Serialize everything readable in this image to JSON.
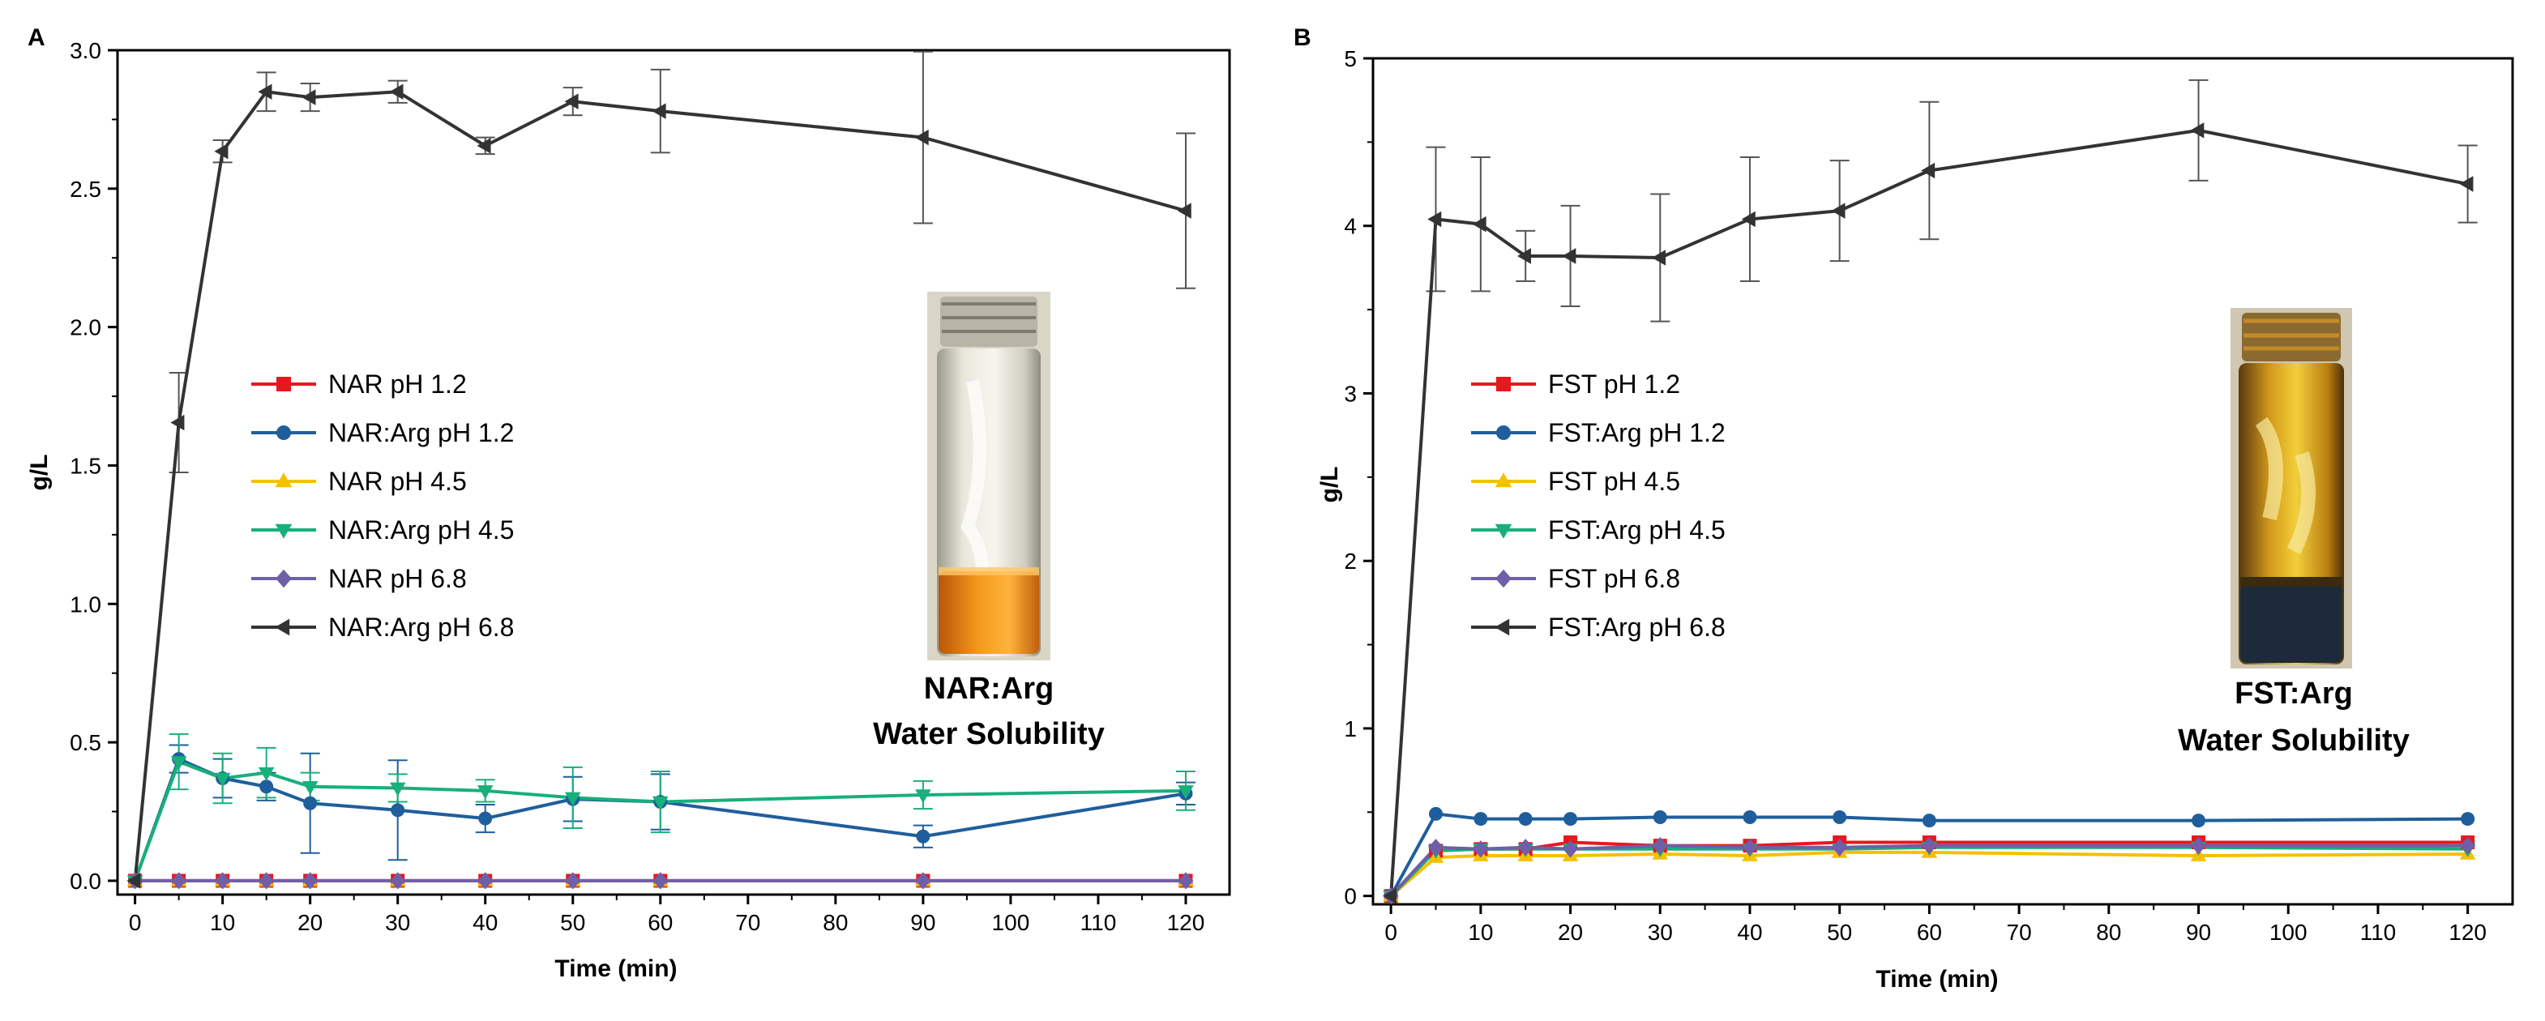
{
  "panels": [
    {
      "label": "A",
      "vial_caption": [
        "NAR:Arg",
        "Water Solubility"
      ]
    },
    {
      "label": "B",
      "vial_caption": [
        "FST:Arg",
        "Water Solubility"
      ]
    }
  ],
  "chart_data": [
    {
      "type": "line",
      "panel": "A",
      "xlabel": "Time (min)",
      "ylabel": "g/L",
      "xlim": [
        -2,
        125
      ],
      "ylim": [
        -0.05,
        3.0
      ],
      "xticks": [
        0,
        10,
        20,
        30,
        40,
        50,
        60,
        70,
        80,
        90,
        100,
        110,
        120
      ],
      "yticks": [
        0.0,
        0.5,
        1.0,
        1.5,
        2.0,
        2.5,
        3.0
      ],
      "ytick_labels": [
        "0.0",
        "0.5",
        "1.0",
        "1.5",
        "2.0",
        "2.5",
        "3.0"
      ],
      "grid": false,
      "legend_position": "center-left",
      "x": [
        0,
        5,
        10,
        15,
        20,
        30,
        40,
        50,
        60,
        90,
        120
      ],
      "series": [
        {
          "name": "NAR pH 1.2",
          "color": "#e8171f",
          "marker": "square",
          "values": [
            0,
            0,
            0,
            0,
            0,
            0,
            0,
            0,
            0,
            0,
            0
          ]
        },
        {
          "name": "NAR:Arg pH 1.2",
          "color": "#1f5e9c",
          "marker": "circle",
          "values": [
            0,
            0.44,
            0.37,
            0.34,
            0.28,
            0.255,
            0.225,
            0.295,
            0.285,
            0.16,
            0.315
          ],
          "errors": [
            0,
            0.05,
            0.07,
            0.05,
            0.18,
            0.18,
            0.05,
            0.08,
            0.1,
            0.04,
            0.04
          ]
        },
        {
          "name": "NAR pH 4.5",
          "color": "#f5c000",
          "marker": "triangle-up",
          "values": [
            0,
            0,
            0,
            0,
            0,
            0,
            0,
            0,
            0,
            0,
            0
          ]
        },
        {
          "name": "NAR:Arg pH 4.5",
          "color": "#17b07a",
          "marker": "triangle-down",
          "values": [
            0,
            0.43,
            0.37,
            0.39,
            0.34,
            0.335,
            0.325,
            0.3,
            0.285,
            0.31,
            0.325
          ],
          "errors": [
            0,
            0.1,
            0.09,
            0.09,
            0.05,
            0.05,
            0.04,
            0.11,
            0.11,
            0.05,
            0.07
          ]
        },
        {
          "name": "NAR pH 6.8",
          "color": "#6e5fa8",
          "marker": "diamond",
          "values": [
            0,
            0,
            0,
            0,
            0,
            0,
            0,
            0,
            0,
            0,
            0
          ]
        },
        {
          "name": "NAR:Arg pH 6.8",
          "color": "#333333",
          "marker": "triangle-left",
          "values": [
            0,
            1.655,
            2.635,
            2.85,
            2.83,
            2.85,
            2.655,
            2.815,
            2.78,
            2.685,
            2.42
          ],
          "errors": [
            0,
            0.18,
            0.04,
            0.07,
            0.05,
            0.04,
            0.03,
            0.05,
            0.15,
            0.31,
            0.28
          ]
        }
      ]
    },
    {
      "type": "line",
      "panel": "B",
      "xlabel": "Time (min)",
      "ylabel": "g/L",
      "xlim": [
        -2,
        125
      ],
      "ylim": [
        -0.05,
        5.0
      ],
      "xticks": [
        0,
        10,
        20,
        30,
        40,
        50,
        60,
        70,
        80,
        90,
        100,
        110,
        120
      ],
      "yticks": [
        0,
        1,
        2,
        3,
        4,
        5
      ],
      "ytick_labels": [
        "0",
        "1",
        "2",
        "3",
        "4",
        "5"
      ],
      "grid": false,
      "legend_position": "center-left",
      "x": [
        0,
        5,
        10,
        15,
        20,
        30,
        40,
        50,
        60,
        90,
        120
      ],
      "series": [
        {
          "name": "FST pH 1.2",
          "color": "#e8171f",
          "marker": "square",
          "values": [
            0,
            0.27,
            0.28,
            0.28,
            0.32,
            0.3,
            0.3,
            0.32,
            0.32,
            0.32,
            0.32
          ]
        },
        {
          "name": "FST:Arg pH 1.2",
          "color": "#1f5e9c",
          "marker": "circle",
          "values": [
            0,
            0.49,
            0.46,
            0.46,
            0.46,
            0.47,
            0.47,
            0.47,
            0.45,
            0.45,
            0.46
          ]
        },
        {
          "name": "FST pH 4.5",
          "color": "#f5c000",
          "marker": "triangle-up",
          "values": [
            0,
            0.23,
            0.24,
            0.24,
            0.24,
            0.25,
            0.24,
            0.26,
            0.26,
            0.24,
            0.25
          ]
        },
        {
          "name": "FST:Arg pH 4.5",
          "color": "#17b07a",
          "marker": "triangle-down",
          "values": [
            0,
            0.27,
            0.28,
            0.28,
            0.28,
            0.28,
            0.28,
            0.28,
            0.29,
            0.29,
            0.28
          ]
        },
        {
          "name": "FST pH 6.8",
          "color": "#6e5fa8",
          "marker": "diamond",
          "values": [
            0,
            0.29,
            0.28,
            0.29,
            0.28,
            0.3,
            0.29,
            0.29,
            0.3,
            0.3,
            0.3
          ]
        },
        {
          "name": "FST:Arg pH 6.8",
          "color": "#333333",
          "marker": "triangle-left",
          "values": [
            0,
            4.04,
            4.01,
            3.82,
            3.82,
            3.81,
            4.04,
            4.09,
            4.33,
            4.57,
            4.25
          ],
          "errors": [
            0,
            0.43,
            0.4,
            0.15,
            0.3,
            0.38,
            0.37,
            0.3,
            0.41,
            0.3,
            0.23
          ]
        }
      ]
    }
  ]
}
